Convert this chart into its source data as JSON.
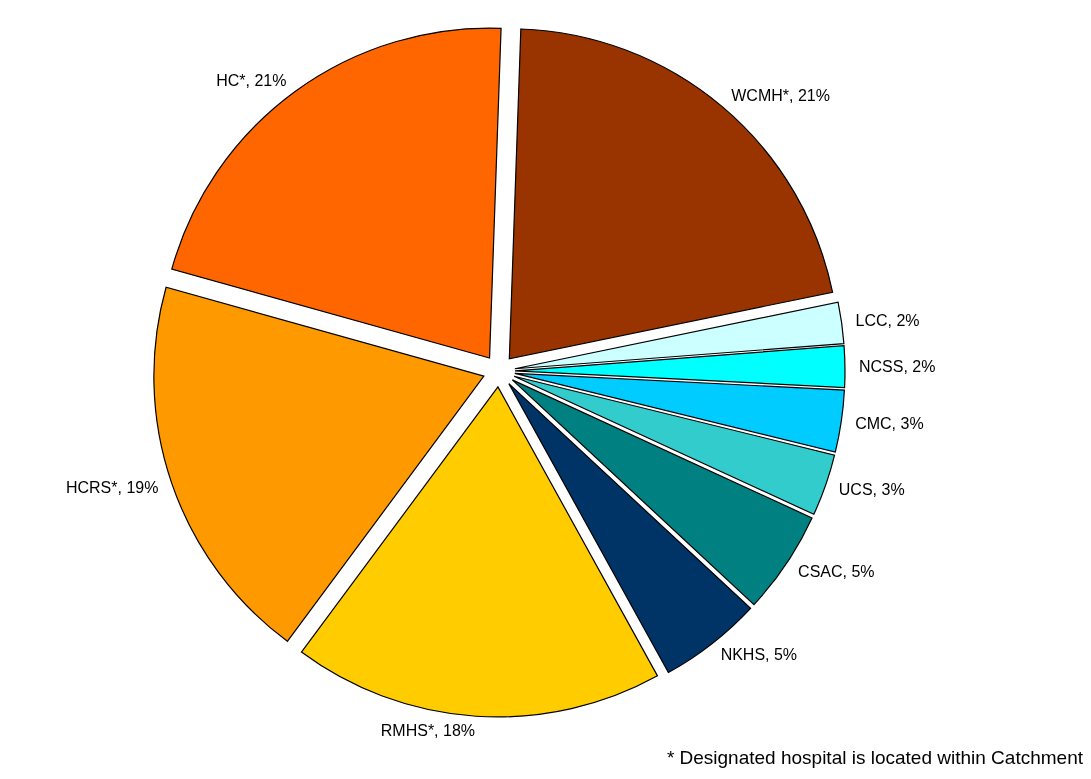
{
  "chart_data": {
    "type": "pie",
    "categories": [
      "WCMH*",
      "LCC",
      "NCSS",
      "CMC",
      "UCS",
      "CSAC",
      "NKHS",
      "RMHS*",
      "HCRS*",
      "HC*"
    ],
    "values": [
      21,
      2,
      2,
      3,
      3,
      5,
      5,
      18,
      19,
      21
    ],
    "value_labels": [
      "21%",
      "2%",
      "2%",
      "3%",
      "3%",
      "5%",
      "5%",
      "18%",
      "19%",
      "21%"
    ],
    "colors": [
      "#993300",
      "#ccffff",
      "#00ffff",
      "#00ccff",
      "#33cccc",
      "#008080",
      "#003366",
      "#ffcc00",
      "#ff9900",
      "#ff6600"
    ],
    "annotations": [
      "* Designated hospital is located within Catchment"
    ]
  }
}
